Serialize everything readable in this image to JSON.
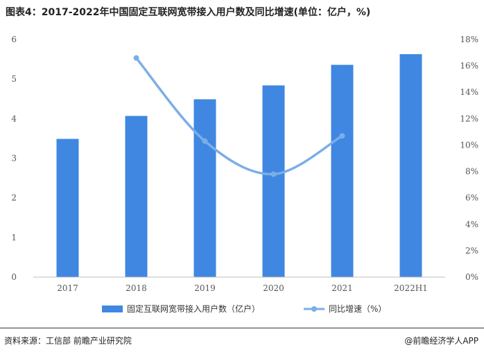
{
  "title": "图表4：2017-2022年中国固定互联网宽带接入用户数及同比增速(单位：亿户，%)",
  "source": "资料来源：工信部 前瞻产业研究院",
  "publisher": "@前瞻经济学人APP",
  "colors": {
    "bar": "#3f87e1",
    "line": "#7aaee8",
    "axis": "#bfbfbf"
  },
  "chart_data": {
    "type": "bar",
    "categories": [
      "2017",
      "2018",
      "2019",
      "2020",
      "2021",
      "2022H1"
    ],
    "series": [
      {
        "name": "固定互联网宽带接入用户数（亿户）",
        "type": "bar",
        "axis": "left",
        "values": [
          3.49,
          4.07,
          4.49,
          4.84,
          5.36,
          5.63
        ]
      },
      {
        "name": "同比增速（%）",
        "type": "line",
        "axis": "right",
        "smooth": true,
        "values": [
          null,
          16.6,
          10.3,
          7.8,
          10.7,
          null
        ]
      }
    ],
    "y_left": {
      "min": 0,
      "max": 6,
      "ticks": [
        "0",
        "1",
        "2",
        "3",
        "4",
        "5",
        "6"
      ]
    },
    "y_right": {
      "min": 0,
      "max": 18,
      "ticks": [
        "0%",
        "2%",
        "4%",
        "6%",
        "8%",
        "10%",
        "12%",
        "14%",
        "16%",
        "18%"
      ]
    },
    "legend": "bottom",
    "grid": false
  }
}
